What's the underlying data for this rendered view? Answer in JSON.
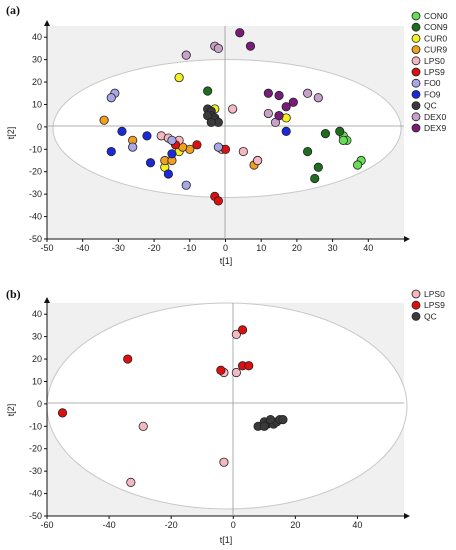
{
  "chart_data": [
    {
      "type": "scatter",
      "panel_label": "(a)",
      "xlabel": "t[1]",
      "ylabel": "t[2]",
      "xlim": [
        -50,
        50
      ],
      "ylim": [
        -50,
        45
      ],
      "xticks": [
        -50,
        -40,
        -30,
        -20,
        -10,
        0,
        10,
        20,
        30,
        40
      ],
      "yticks": [
        -50,
        -40,
        -30,
        -20,
        -10,
        0,
        10,
        20,
        30,
        40
      ],
      "legend_position": "right",
      "series": [
        {
          "name": "CON0",
          "color": "#66dd55",
          "points": [
            [
              33,
              -4
            ],
            [
              34,
              -6
            ],
            [
              33,
              -6
            ],
            [
              38,
              -15
            ],
            [
              37,
              -17
            ]
          ]
        },
        {
          "name": "CON9",
          "color": "#1f6e1f",
          "points": [
            [
              -5,
              16
            ],
            [
              28,
              -3
            ],
            [
              32,
              -2
            ],
            [
              23,
              -11
            ],
            [
              26,
              -18
            ],
            [
              25,
              -23
            ]
          ]
        },
        {
          "name": "CUR0",
          "color": "#f5f020",
          "points": [
            [
              -13,
              22
            ],
            [
              -3,
              8
            ],
            [
              -13,
              -11
            ],
            [
              -17,
              -18
            ],
            [
              15,
              5
            ],
            [
              17,
              4
            ]
          ]
        },
        {
          "name": "CUR9",
          "color": "#f0a020",
          "points": [
            [
              -34,
              3
            ],
            [
              -26,
              -6
            ],
            [
              -17,
              -15
            ],
            [
              -15,
              -15
            ],
            [
              -10,
              -10
            ],
            [
              -12,
              -9
            ],
            [
              8,
              -17
            ],
            [
              9,
              -15
            ]
          ]
        },
        {
          "name": "LPS0",
          "color": "#f4b8c0",
          "points": [
            [
              2,
              8
            ],
            [
              -1,
              -10
            ],
            [
              5,
              -11
            ],
            [
              9,
              -15
            ],
            [
              -18,
              -4
            ],
            [
              -16,
              -5
            ],
            [
              -13,
              -6
            ]
          ]
        },
        {
          "name": "LPS9",
          "color": "#dd1010",
          "points": [
            [
              -8,
              -8
            ],
            [
              -14,
              -8
            ],
            [
              0,
              -10
            ],
            [
              -3,
              -31
            ],
            [
              -2,
              -33
            ]
          ]
        },
        {
          "name": "FO0",
          "color": "#a8a8e8",
          "points": [
            [
              -31,
              15
            ],
            [
              -32,
              13
            ],
            [
              -26,
              -9
            ],
            [
              -11,
              -26
            ],
            [
              -15,
              -6
            ],
            [
              -2,
              -9
            ]
          ]
        },
        {
          "name": "FO9",
          "color": "#1a2ad8",
          "points": [
            [
              -29,
              -2
            ],
            [
              -32,
              -11
            ],
            [
              -22,
              -4
            ],
            [
              -21,
              -16
            ],
            [
              -16,
              -21
            ],
            [
              -15,
              -12
            ],
            [
              17,
              -2
            ]
          ]
        },
        {
          "name": "QC",
          "color": "#3a3a3a",
          "points": [
            [
              -5,
              8
            ],
            [
              -4,
              7
            ],
            [
              -4,
              5
            ],
            [
              -3,
              4
            ],
            [
              -3,
              3
            ],
            [
              -5,
              5
            ],
            [
              -2,
              2
            ],
            [
              -4,
              2
            ]
          ]
        },
        {
          "name": "DEX0",
          "color": "#c8a0c8",
          "points": [
            [
              -11,
              32
            ],
            [
              -3,
              36
            ],
            [
              -2,
              35
            ],
            [
              12,
              6
            ],
            [
              23,
              15
            ],
            [
              26,
              13
            ],
            [
              14,
              2
            ]
          ]
        },
        {
          "name": "DEX9",
          "color": "#7a1a7a",
          "points": [
            [
              4,
              42
            ],
            [
              7,
              36
            ],
            [
              12,
              15
            ],
            [
              15,
              14
            ],
            [
              17,
              9
            ],
            [
              19,
              11
            ],
            [
              15,
              5
            ]
          ]
        }
      ]
    },
    {
      "type": "scatter",
      "panel_label": "(b)",
      "xlabel": "t[1]",
      "ylabel": "t[2]",
      "xlim": [
        -60,
        55
      ],
      "ylim": [
        -50,
        45
      ],
      "xticks": [
        -60,
        -40,
        -20,
        0,
        20,
        40
      ],
      "yticks": [
        -50,
        -40,
        -30,
        -20,
        -10,
        0,
        10,
        20,
        30,
        40
      ],
      "legend_position": "right",
      "series": [
        {
          "name": "LPS0",
          "color": "#f4b8c0",
          "points": [
            [
              1,
              31
            ],
            [
              -3,
              14
            ],
            [
              1,
              14
            ],
            [
              -29,
              -10
            ],
            [
              -33,
              -35
            ],
            [
              -3,
              -26
            ]
          ]
        },
        {
          "name": "LPS9",
          "color": "#dd1010",
          "points": [
            [
              3,
              33
            ],
            [
              -34,
              20
            ],
            [
              -4,
              15
            ],
            [
              3,
              17
            ],
            [
              5,
              17
            ],
            [
              -55,
              -4
            ]
          ]
        },
        {
          "name": "QC",
          "color": "#3a3a3a",
          "points": [
            [
              8,
              -10
            ],
            [
              10,
              -8
            ],
            [
              11,
              -9
            ],
            [
              12,
              -8
            ],
            [
              13,
              -9
            ],
            [
              14,
              -8
            ],
            [
              15,
              -7
            ],
            [
              16,
              -7
            ],
            [
              12,
              -7
            ],
            [
              10,
              -10
            ]
          ]
        }
      ]
    }
  ]
}
